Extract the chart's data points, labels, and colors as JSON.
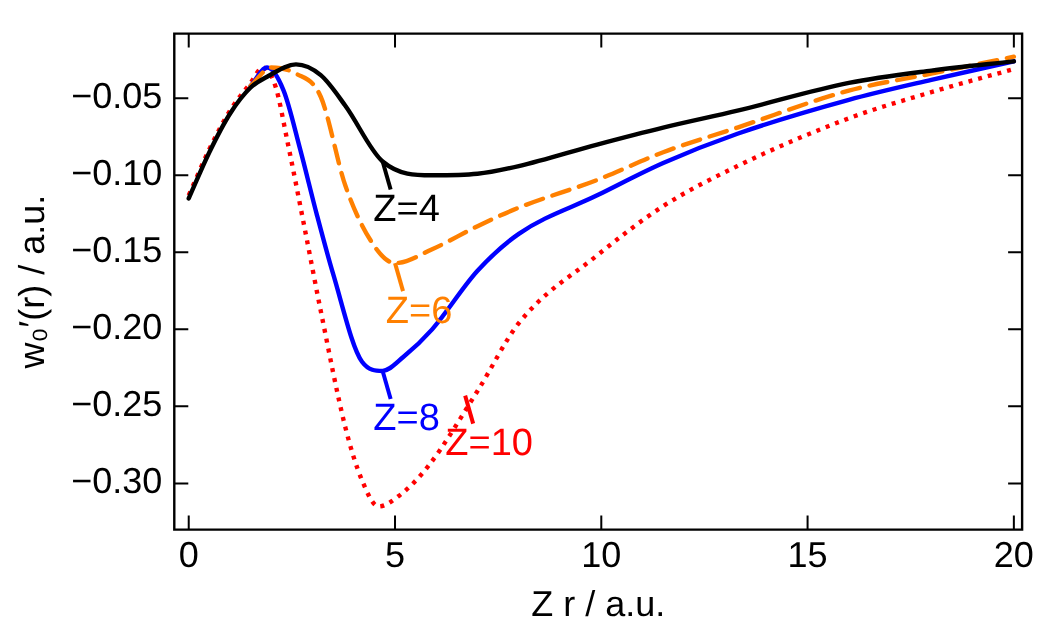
{
  "chart_data": {
    "type": "line",
    "xlabel": "Z r / a.u.",
    "ylabel": "w₀′(r) / a.u.",
    "xlim": [
      -0.35,
      20.2
    ],
    "ylim": [
      -0.33,
      -0.008
    ],
    "xticks": [
      0,
      5,
      10,
      15,
      20
    ],
    "yticks": [
      {
        "value": -0.3,
        "label": "−0.30"
      },
      {
        "value": -0.25,
        "label": "−0.25"
      },
      {
        "value": -0.2,
        "label": "−0.20"
      },
      {
        "value": -0.15,
        "label": "−0.15"
      },
      {
        "value": -0.1,
        "label": "−0.10"
      },
      {
        "value": -0.05,
        "label": "−0.05"
      }
    ],
    "grid": false,
    "legend": false,
    "marker": "none",
    "series": [
      {
        "color": "#000000",
        "line_style": "solid",
        "x": [
          0,
          0.5,
          1,
          1.5,
          1.9,
          2.6,
          3.2,
          3.8,
          4.7,
          5.9,
          7,
          8,
          9.9,
          11.5,
          13.3,
          16,
          18,
          20
        ],
        "values": [
          -0.115,
          -0.085,
          -0.06,
          -0.043,
          -0.036,
          -0.028,
          -0.035,
          -0.055,
          -0.091,
          -0.1,
          -0.099,
          -0.094,
          -0.08,
          -0.069,
          -0.058,
          -0.04,
          -0.032,
          -0.026
        ]
      },
      {
        "color": "#ff8000",
        "line_style": "dashed",
        "x": [
          1.5,
          2,
          2.6,
          3.2,
          3.8,
          4.5,
          5,
          5.9,
          7,
          8,
          9.9,
          11.5,
          13.3,
          16,
          18,
          20
        ],
        "values": [
          -0.042,
          -0.03,
          -0.034,
          -0.049,
          -0.107,
          -0.146,
          -0.157,
          -0.148,
          -0.133,
          -0.121,
          -0.103,
          -0.085,
          -0.069,
          -0.045,
          -0.034,
          -0.023
        ]
      },
      {
        "color": "#0000ff",
        "line_style": "solid",
        "x": [
          1.5,
          1.9,
          2.3,
          2.7,
          3.1,
          3.5,
          4.2,
          4.7,
          5.2,
          5.9,
          7,
          8,
          9.9,
          11.5,
          13.3,
          16,
          18,
          20
        ],
        "values": [
          -0.042,
          -0.03,
          -0.045,
          -0.083,
          -0.125,
          -0.164,
          -0.221,
          -0.227,
          -0.218,
          -0.2,
          -0.162,
          -0.138,
          -0.113,
          -0.092,
          -0.073,
          -0.051,
          -0.038,
          -0.026
        ]
      },
      {
        "color": "#ff0000",
        "line_style": "dotted",
        "x": [
          0,
          0.5,
          1,
          1.5,
          1.8,
          2.1,
          2.4,
          2.8,
          3.2,
          3.8,
          4.2,
          4.6,
          5.1,
          5.8,
          7,
          8,
          9.9,
          11.5,
          13.3,
          16,
          18,
          20
        ],
        "values": [
          -0.113,
          -0.083,
          -0.058,
          -0.04,
          -0.03,
          -0.042,
          -0.079,
          -0.133,
          -0.188,
          -0.264,
          -0.298,
          -0.315,
          -0.308,
          -0.289,
          -0.24,
          -0.196,
          -0.152,
          -0.12,
          -0.094,
          -0.063,
          -0.046,
          -0.031
        ]
      }
    ],
    "annotations": [
      {
        "text": "Z=4",
        "x": 4.7,
        "y": -0.091
      },
      {
        "text": "Z=6",
        "x": 5.0,
        "y": -0.157
      },
      {
        "text": "Z=8",
        "x": 4.7,
        "y": -0.227
      },
      {
        "text": "Z=10",
        "x": 6.7,
        "y": -0.243
      }
    ]
  }
}
